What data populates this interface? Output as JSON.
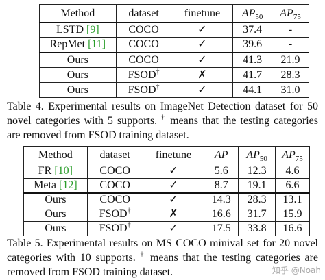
{
  "table4": {
    "headers": [
      "Method",
      "dataset",
      "finetune",
      "AP",
      "50",
      "AP",
      "75"
    ],
    "rows": [
      {
        "method": "LSTD ",
        "cite": "[9]",
        "dataset": "COCO",
        "dagger": "",
        "finetune": "check",
        "ap50": "37.4",
        "ap75": "-",
        "bold50": false,
        "bold75": false
      },
      {
        "method": "RepMet ",
        "cite": "[11]",
        "dataset": "COCO",
        "dagger": "",
        "finetune": "check",
        "ap50": "39.6",
        "ap75": "-",
        "bold50": false,
        "bold75": false
      },
      {
        "method": "Ours",
        "cite": "",
        "dataset": "COCO",
        "dagger": "",
        "finetune": "check",
        "ap50": "41.3",
        "ap75": "21.9",
        "bold50": false,
        "bold75": false
      },
      {
        "method": "Ours",
        "cite": "",
        "dataset": "FSOD",
        "dagger": "†",
        "finetune": "cross",
        "ap50": "41.7",
        "ap75": "28.3",
        "bold50": false,
        "bold75": false
      },
      {
        "method": "Ours",
        "cite": "",
        "dataset": "FSOD",
        "dagger": "†",
        "finetune": "check",
        "ap50": "44.1",
        "ap75": "31.0",
        "bold50": true,
        "bold75": true
      }
    ],
    "caption_a": "Table 4. Experimental results on ImageNet Detection dataset for 50 novel categories with 5 supports. ",
    "caption_dagger": "†",
    "caption_b": " means that the testing categories are removed from FSOD training dataset."
  },
  "table5": {
    "headers": [
      "Method",
      "dataset",
      "finetune",
      "AP",
      "AP",
      "50",
      "AP",
      "75"
    ],
    "rows": [
      {
        "method": "FR ",
        "cite": "[10]",
        "dataset": "COCO",
        "dagger": "",
        "finetune": "check",
        "ap": "5.6",
        "ap50": "12.3",
        "ap75": "4.6",
        "bold": false
      },
      {
        "method": "Meta ",
        "cite": "[12]",
        "dataset": "COCO",
        "dagger": "",
        "finetune": "check",
        "ap": "8.7",
        "ap50": "19.1",
        "ap75": "6.6",
        "bold": false
      },
      {
        "method": "Ours",
        "cite": "",
        "dataset": "COCO",
        "dagger": "",
        "finetune": "check",
        "ap": "14.3",
        "ap50": "28.3",
        "ap75": "13.1",
        "bold": false
      },
      {
        "method": "Ours",
        "cite": "",
        "dataset": "FSOD",
        "dagger": "†",
        "finetune": "cross",
        "ap": "16.6",
        "ap50": "31.7",
        "ap75": "15.9",
        "bold": false
      },
      {
        "method": "Ours",
        "cite": "",
        "dataset": "FSOD",
        "dagger": "†",
        "finetune": "check",
        "ap": "17.5",
        "ap50": "33.8",
        "ap75": "16.6",
        "bold": true
      }
    ],
    "caption_a": "Table 5. Experimental results on MS COCO minival set for 20 novel categories with 10 supports. ",
    "caption_dagger": "†",
    "caption_b": " means that the testing categories are removed from FSOD training dataset."
  },
  "watermark": "知乎 @Noah"
}
